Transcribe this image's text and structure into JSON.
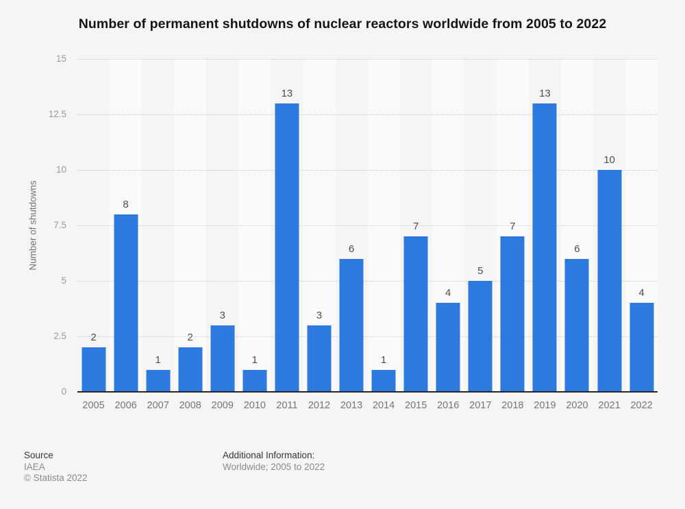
{
  "title": "Number of permanent shutdowns of nuclear reactors worldwide from 2005 to 2022",
  "chart_data": {
    "type": "bar",
    "title": "Number of permanent shutdowns of nuclear reactors worldwide from 2005 to 2022",
    "categories": [
      "2005",
      "2006",
      "2007",
      "2008",
      "2009",
      "2010",
      "2011",
      "2012",
      "2013",
      "2014",
      "2015",
      "2016",
      "2017",
      "2018",
      "2019",
      "2020",
      "2021",
      "2022"
    ],
    "values": [
      2,
      8,
      1,
      2,
      3,
      1,
      13,
      3,
      6,
      1,
      7,
      4,
      5,
      7,
      13,
      6,
      10,
      4
    ],
    "xlabel": "",
    "ylabel": "Number of shutdowns",
    "ylim": [
      0,
      15
    ],
    "yticks": [
      "0",
      "2.5",
      "5",
      "7.5",
      "10",
      "12.5",
      "15"
    ],
    "grid": true,
    "legend": "none",
    "bar_color": "#2e79de",
    "band_color": "#fafafa",
    "gridline_color": "#c9c9c9"
  },
  "footer": {
    "source_label": "Source",
    "source_value": "IAEA",
    "copyright": "© Statista 2022",
    "additional_info_label": "Additional Information:",
    "additional_info_value": "Worldwide; 2005 to 2022"
  }
}
